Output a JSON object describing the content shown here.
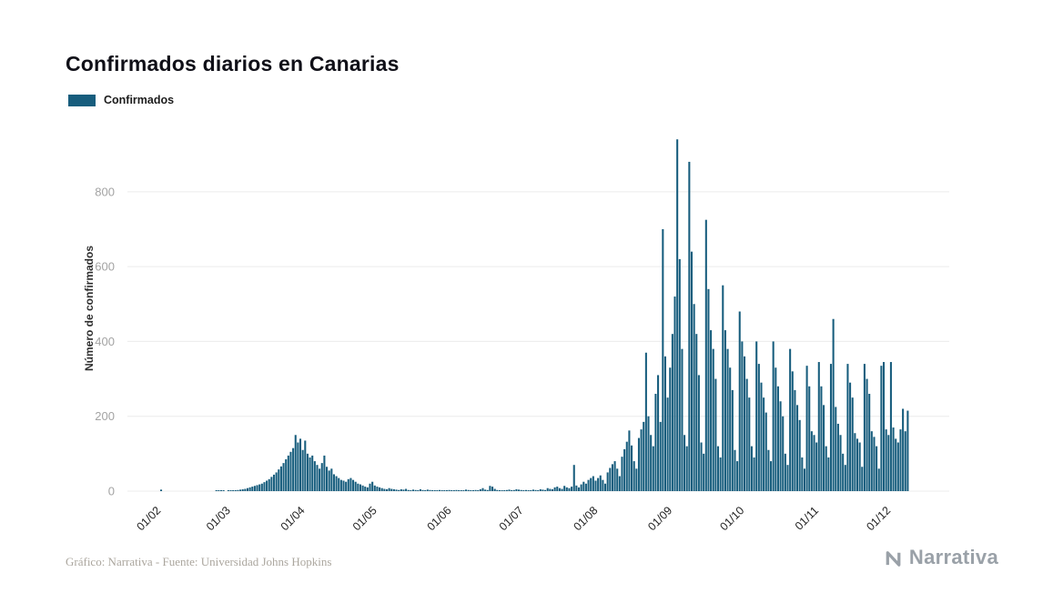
{
  "page": {
    "title": "Confirmados diarios en Canarias",
    "legend": {
      "label": "Confirmados"
    },
    "footer": {
      "credit": "Gráfico: Narrativa - Fuente: Universidad Johns Hopkins"
    },
    "logo": {
      "text": "Narrativa"
    }
  },
  "chart_data": {
    "type": "bar",
    "title": "Confirmados diarios en Canarias",
    "series_name": "Confirmados",
    "xlabel": "",
    "ylabel": "Número de confirmados",
    "bar_color": "#175d7d",
    "grid_color": "#ececec",
    "y_tick_color": "#a3a3a3",
    "x_tick_color": "#1f1f1f",
    "grid": "horizontal-only",
    "legend_position": "top-left",
    "y_ticks": [
      0,
      200,
      400,
      600,
      800
    ],
    "ylim": [
      0,
      960
    ],
    "x_tick_labels": [
      "01/02",
      "01/03",
      "01/04",
      "01/05",
      "01/06",
      "01/07",
      "01/08",
      "01/09",
      "01/10",
      "01/11",
      "01/12"
    ],
    "x_tick_day_indices": [
      0,
      29,
      60,
      90,
      121,
      151,
      182,
      213,
      243,
      274,
      304
    ],
    "values": [
      4,
      0,
      0,
      0,
      0,
      0,
      0,
      0,
      0,
      0,
      0,
      0,
      0,
      0,
      0,
      0,
      0,
      0,
      0,
      0,
      0,
      0,
      0,
      1,
      1,
      2,
      1,
      0,
      2,
      1,
      2,
      2,
      3,
      4,
      5,
      6,
      8,
      10,
      12,
      14,
      16,
      18,
      20,
      24,
      28,
      32,
      38,
      44,
      50,
      58,
      66,
      75,
      85,
      95,
      105,
      115,
      150,
      130,
      140,
      110,
      135,
      100,
      90,
      95,
      80,
      70,
      60,
      75,
      95,
      65,
      55,
      60,
      45,
      40,
      35,
      30,
      28,
      25,
      32,
      35,
      30,
      25,
      20,
      18,
      15,
      12,
      10,
      20,
      25,
      15,
      12,
      10,
      8,
      6,
      5,
      8,
      6,
      5,
      4,
      3,
      5,
      4,
      6,
      3,
      2,
      4,
      3,
      2,
      5,
      3,
      2,
      4,
      3,
      2,
      1,
      2,
      3,
      2,
      1,
      2,
      3,
      2,
      1,
      3,
      2,
      1,
      2,
      4,
      3,
      2,
      1,
      3,
      2,
      5,
      8,
      4,
      3,
      14,
      12,
      6,
      3,
      2,
      1,
      2,
      3,
      4,
      2,
      3,
      5,
      4,
      3,
      2,
      3,
      1,
      2,
      4,
      3,
      2,
      5,
      4,
      3,
      8,
      6,
      5,
      10,
      12,
      8,
      6,
      14,
      10,
      8,
      12,
      70,
      15,
      10,
      18,
      25,
      20,
      30,
      35,
      40,
      28,
      35,
      42,
      30,
      20,
      50,
      62,
      72,
      80,
      60,
      40,
      92,
      112,
      132,
      162,
      122,
      80,
      60,
      142,
      165,
      185,
      370,
      200,
      150,
      120,
      260,
      310,
      185,
      700,
      360,
      250,
      330,
      420,
      520,
      940,
      620,
      380,
      150,
      120,
      880,
      640,
      500,
      420,
      310,
      130,
      100,
      725,
      540,
      430,
      380,
      300,
      120,
      90,
      550,
      430,
      380,
      330,
      270,
      110,
      80,
      480,
      400,
      360,
      300,
      250,
      120,
      90,
      400,
      340,
      290,
      250,
      210,
      110,
      80,
      400,
      330,
      280,
      240,
      200,
      100,
      70,
      380,
      320,
      270,
      230,
      190,
      90,
      60,
      335,
      280,
      160,
      150,
      130,
      345,
      280,
      230,
      120,
      90,
      340,
      460,
      225,
      180,
      150,
      100,
      70,
      340,
      290,
      250,
      155,
      140,
      130,
      65,
      340,
      300,
      260,
      160,
      145,
      120,
      60,
      335,
      345,
      165,
      150,
      345,
      170,
      140,
      130,
      165,
      220,
      160,
      215
    ]
  }
}
